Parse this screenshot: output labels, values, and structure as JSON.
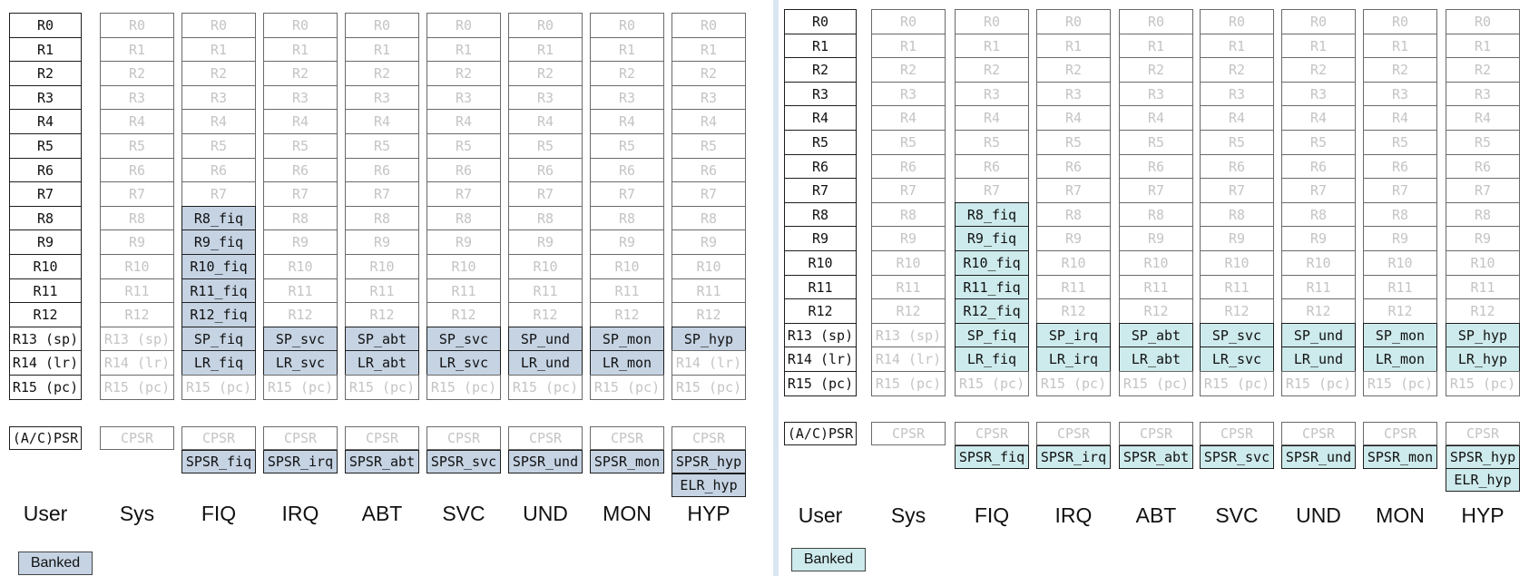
{
  "rows": [
    "R0",
    "R1",
    "R2",
    "R3",
    "R4",
    "R5",
    "R6",
    "R7",
    "R8",
    "R9",
    "R10",
    "R11",
    "R12",
    "R13 (sp)",
    "R14 (lr)",
    "R15 (pc)"
  ],
  "psr_label": "(A/C)PSR",
  "cpsr_label": "CPSR",
  "modes": [
    {
      "label": "User",
      "banked": {}
    },
    {
      "label": "Sys",
      "banked": {}
    },
    {
      "label": "FIQ",
      "banked": {
        "8": "R8_fiq",
        "9": "R9_fiq",
        "10": "R10_fiq",
        "11": "R11_fiq",
        "12": "R12_fiq",
        "13": "SP_fiq",
        "14": "LR_fiq"
      },
      "spsr": "SPSR_fiq"
    },
    {
      "label": "IRQ",
      "banked": {
        "13": "SP_irq",
        "14": "LR_irq"
      },
      "spsr": "SPSR_irq"
    },
    {
      "label": "ABT",
      "banked": {
        "13": "SP_abt",
        "14": "LR_abt"
      },
      "spsr": "SPSR_abt"
    },
    {
      "label": "SVC",
      "banked": {
        "13": "SP_svc",
        "14": "LR_svc"
      },
      "spsr": "SPSR_svc"
    },
    {
      "label": "UND",
      "banked": {
        "13": "SP_und",
        "14": "LR_und"
      },
      "spsr": "SPSR_und"
    },
    {
      "label": "MON",
      "banked": {
        "13": "SP_mon",
        "14": "LR_mon"
      },
      "spsr": "SPSR_mon"
    },
    {
      "label": "HYP",
      "banked": {
        "13": "SP_hyp"
      },
      "spsr": "SPSR_hyp",
      "elr": "ELR_hyp"
    }
  ],
  "left_panel": {
    "legend_label": "Banked",
    "banked_color": "#c5d3e3",
    "mode_overrides": {
      "IRQ": {
        "13": "SP_svc",
        "14": "LR_svc"
      }
    }
  },
  "right_panel": {
    "legend_label": "Banked",
    "banked_color": "#cdeaec",
    "mode_overrides": {
      "HYP": {
        "14": "LR_hyp"
      }
    }
  }
}
